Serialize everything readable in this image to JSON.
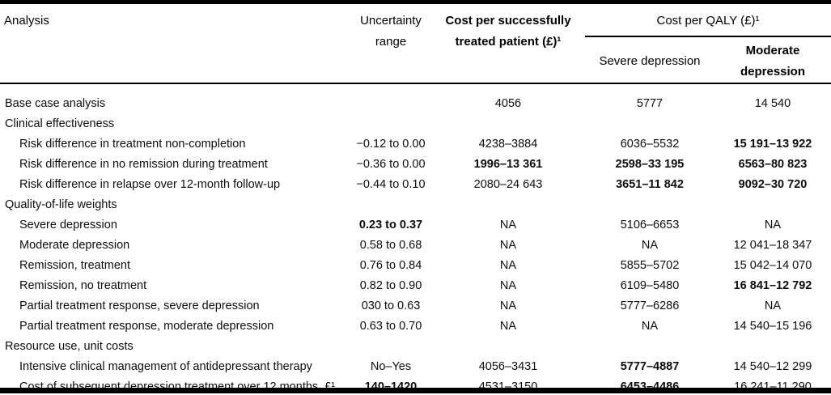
{
  "table": {
    "header": {
      "analysis": "Analysis",
      "uncertainty": "Uncertainty range",
      "cost_patient": "Cost per successfully treated patient (£)¹",
      "qaly_group": "Cost per QALY (£)¹",
      "severe": "Severe depression",
      "moderate": "Moderate depression"
    },
    "rows": [
      {
        "label": "Base case analysis",
        "indent": false,
        "uncertainty": "",
        "cost": "4056",
        "severe": "5777",
        "moderate": "14 540",
        "bold": []
      },
      {
        "label": "Clinical effectiveness",
        "indent": false,
        "uncertainty": "",
        "cost": "",
        "severe": "",
        "moderate": "",
        "bold": []
      },
      {
        "label": "Risk difference in treatment non-completion",
        "indent": true,
        "uncertainty": "−0.12 to 0.00",
        "cost": "4238–3884",
        "severe": "6036–5532",
        "moderate": "15 191–13 922",
        "bold": [
          "moderate"
        ]
      },
      {
        "label": "Risk difference in no remission during treatment",
        "indent": true,
        "uncertainty": "−0.36 to 0.00",
        "cost": "1996–13 361",
        "severe": "2598–33 195",
        "moderate": "6563–80 823",
        "bold": [
          "cost",
          "severe",
          "moderate"
        ]
      },
      {
        "label": "Risk difference in relapse over 12-month follow-up",
        "indent": true,
        "uncertainty": "−0.44 to 0.10",
        "cost": "2080–24 643",
        "severe": "3651–11 842",
        "moderate": "9092–30 720",
        "bold": [
          "severe",
          "moderate"
        ]
      },
      {
        "label": "Quality-of-life weights",
        "indent": false,
        "uncertainty": "",
        "cost": "",
        "severe": "",
        "moderate": "",
        "bold": []
      },
      {
        "label": "Severe depression",
        "indent": true,
        "uncertainty": "0.23 to 0.37",
        "cost": "NA",
        "severe": "5106–6653",
        "moderate": "NA",
        "bold": [
          "uncertainty"
        ]
      },
      {
        "label": "Moderate depression",
        "indent": true,
        "uncertainty": "0.58 to 0.68",
        "cost": "NA",
        "severe": "NA",
        "moderate": "12 041–18 347",
        "bold": []
      },
      {
        "label": "Remission, treatment",
        "indent": true,
        "uncertainty": "0.76 to 0.84",
        "cost": "NA",
        "severe": "5855–5702",
        "moderate": "15 042–14 070",
        "bold": []
      },
      {
        "label": "Remission, no treatment",
        "indent": true,
        "uncertainty": "0.82 to 0.90",
        "cost": "NA",
        "severe": "6109–5480",
        "moderate": "16 841–12 792",
        "bold": [
          "moderate"
        ]
      },
      {
        "label": "Partial treatment response, severe depression",
        "indent": true,
        "uncertainty": "030 to 0.63",
        "cost": "NA",
        "severe": "5777–6286",
        "moderate": "NA",
        "bold": []
      },
      {
        "label": "Partial treatment response, moderate depression",
        "indent": true,
        "uncertainty": "0.63 to 0.70",
        "cost": "NA",
        "severe": "NA",
        "moderate": "14 540–15 196",
        "bold": []
      },
      {
        "label": "Resource use, unit costs",
        "indent": false,
        "uncertainty": "",
        "cost": "",
        "severe": "",
        "moderate": "",
        "bold": []
      },
      {
        "label": "Intensive clinical management of antidepressant therapy",
        "indent": true,
        "uncertainty": "No–Yes",
        "cost": "4056–3431",
        "severe": "5777–4887",
        "moderate": "14 540–12 299",
        "bold": [
          "severe"
        ]
      },
      {
        "label": "Cost of subsequent depression treatment over 12 months, £¹",
        "indent": true,
        "uncertainty": "140–1420",
        "cost": "4531–3150",
        "severe": "6453–4486",
        "moderate": "16 241–11 290",
        "bold": [
          "uncertainty",
          "severe"
        ]
      }
    ]
  }
}
